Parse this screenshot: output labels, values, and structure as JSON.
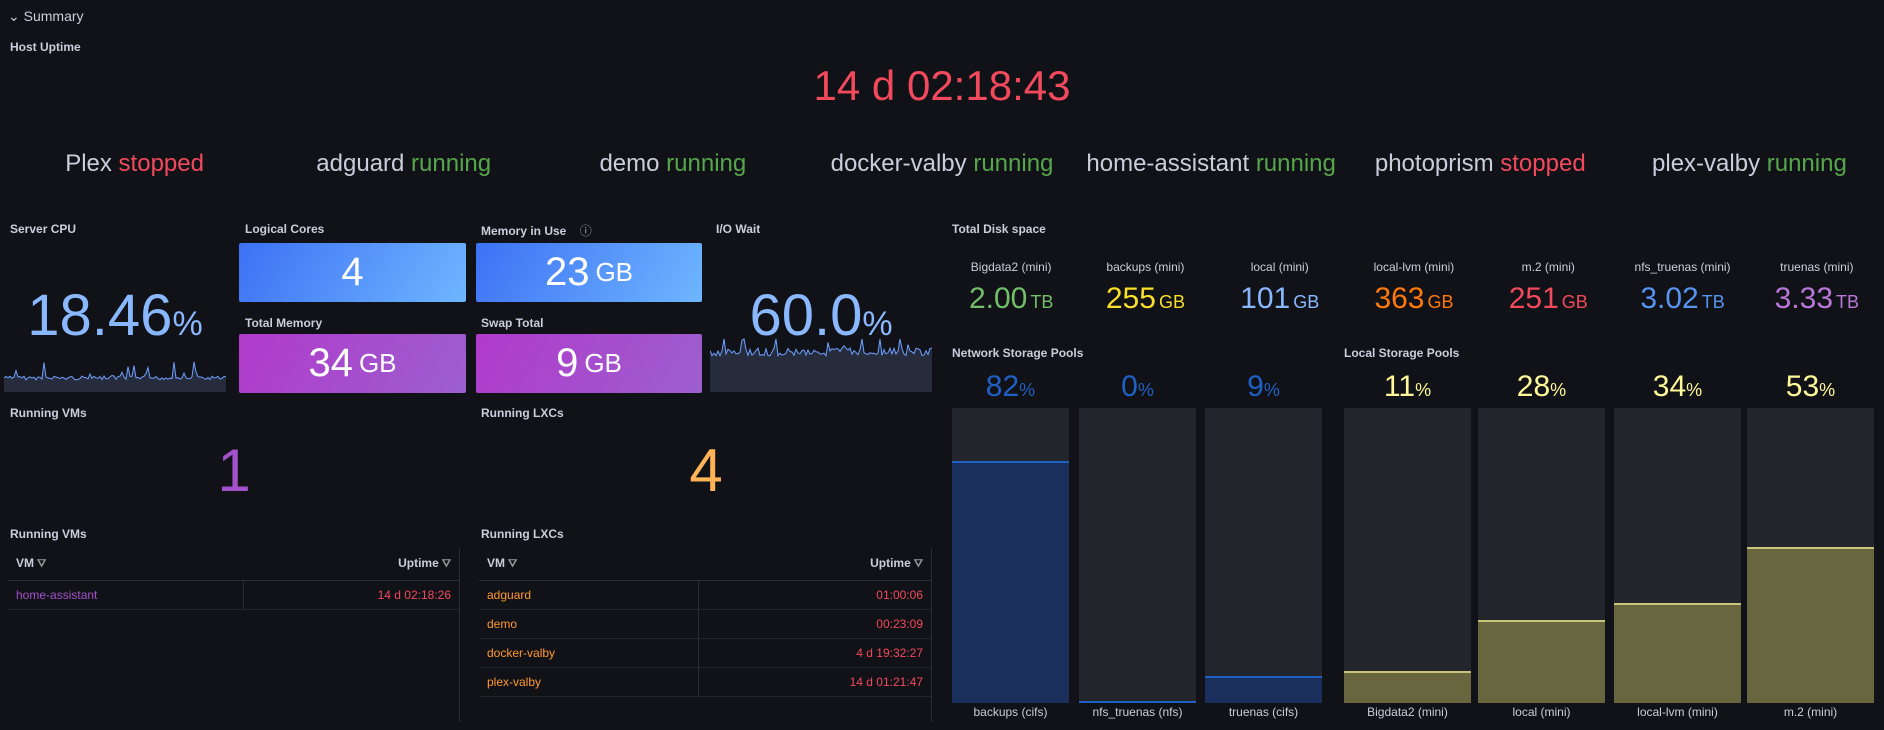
{
  "row": {
    "title": "Summary",
    "chevron": "⌄"
  },
  "host_uptime": {
    "title": "Host Uptime",
    "value": "14 d 02:18:43"
  },
  "statuses": [
    {
      "name": "Plex",
      "state": "stopped",
      "color": "#f2495c"
    },
    {
      "name": "adguard",
      "state": "running",
      "color": "#56a64b"
    },
    {
      "name": "demo",
      "state": "running",
      "color": "#56a64b"
    },
    {
      "name": "docker-valby",
      "state": "running",
      "color": "#56a64b"
    },
    {
      "name": "home-assistant",
      "state": "running",
      "color": "#56a64b"
    },
    {
      "name": "photoprism",
      "state": "stopped",
      "color": "#f2495c"
    },
    {
      "name": "plex-valby",
      "state": "running",
      "color": "#56a64b"
    }
  ],
  "server_cpu": {
    "title": "Server CPU",
    "value": "18.46",
    "unit": "%"
  },
  "logical_cores": {
    "title": "Logical Cores",
    "value": "4"
  },
  "memory_in_use": {
    "title": "Memory in Use",
    "value": "23",
    "unit": "GB",
    "info_icon": "ⓘ"
  },
  "total_memory": {
    "title": "Total Memory",
    "value": "34",
    "unit": "GB"
  },
  "swap_total": {
    "title": "Swap Total",
    "value": "9",
    "unit": "GB"
  },
  "io_wait": {
    "title": "I/O Wait",
    "value": "60.0",
    "unit": "%"
  },
  "running_vms_count": {
    "title": "Running VMs",
    "value": "1",
    "color": "#a352cc"
  },
  "running_lxcs_count": {
    "title": "Running LXCs",
    "value": "4",
    "color": "#ffb357"
  },
  "vm_table": {
    "title": "Running VMs",
    "columns": [
      "VM",
      "Uptime"
    ],
    "rows": [
      {
        "name": "home-assistant",
        "uptime": "14 d 02:18:26"
      }
    ],
    "name_color": "#a352cc"
  },
  "lxc_table": {
    "title": "Running LXCs",
    "columns": [
      "VM",
      "Uptime"
    ],
    "rows": [
      {
        "name": "adguard",
        "uptime": "01:00:06"
      },
      {
        "name": "demo",
        "uptime": "00:23:09"
      },
      {
        "name": "docker-valby",
        "uptime": "4 d 19:32:27"
      },
      {
        "name": "plex-valby",
        "uptime": "14 d 01:21:47"
      }
    ],
    "name_color": "#ff9830"
  },
  "disk": {
    "title": "Total Disk space",
    "items": [
      {
        "label": "Bigdata2 (mini)",
        "value": "2.00",
        "unit": "TB",
        "color": "#73bf69"
      },
      {
        "label": "backups (mini)",
        "value": "255",
        "unit": "GB",
        "color": "#fade2a"
      },
      {
        "label": "local (mini)",
        "value": "101",
        "unit": "GB",
        "color": "#8ab8ff"
      },
      {
        "label": "local-lvm (mini)",
        "value": "363",
        "unit": "GB",
        "color": "#ff780a"
      },
      {
        "label": "m.2 (mini)",
        "value": "251",
        "unit": "GB",
        "color": "#f2495c"
      },
      {
        "label": "nfs_truenas (mini)",
        "value": "3.02",
        "unit": "TB",
        "color": "#5794f2"
      },
      {
        "label": "truenas (mini)",
        "value": "3.33",
        "unit": "TB",
        "color": "#b877d9"
      }
    ]
  },
  "network_pools": {
    "title": "Network Storage Pools",
    "color": "#1f60c4",
    "items": [
      {
        "label": "backups (cifs)",
        "value": "82",
        "unit": "%",
        "fraction": 0.82
      },
      {
        "label": "nfs_truenas (nfs)",
        "value": "0",
        "unit": "%",
        "fraction": 0.005
      },
      {
        "label": "truenas (cifs)",
        "value": "9",
        "unit": "%",
        "fraction": 0.09
      }
    ]
  },
  "local_pools": {
    "title": "Local Storage Pools",
    "color": "#fff899",
    "items": [
      {
        "label": "Bigdata2 (mini)",
        "value": "11",
        "unit": "%",
        "fraction": 0.11
      },
      {
        "label": "local (mini)",
        "value": "28",
        "unit": "%",
        "fraction": 0.28
      },
      {
        "label": "local-lvm (mini)",
        "value": "34",
        "unit": "%",
        "fraction": 0.34
      },
      {
        "label": "m.2 (mini)",
        "value": "53",
        "unit": "%",
        "fraction": 0.53
      }
    ]
  }
}
